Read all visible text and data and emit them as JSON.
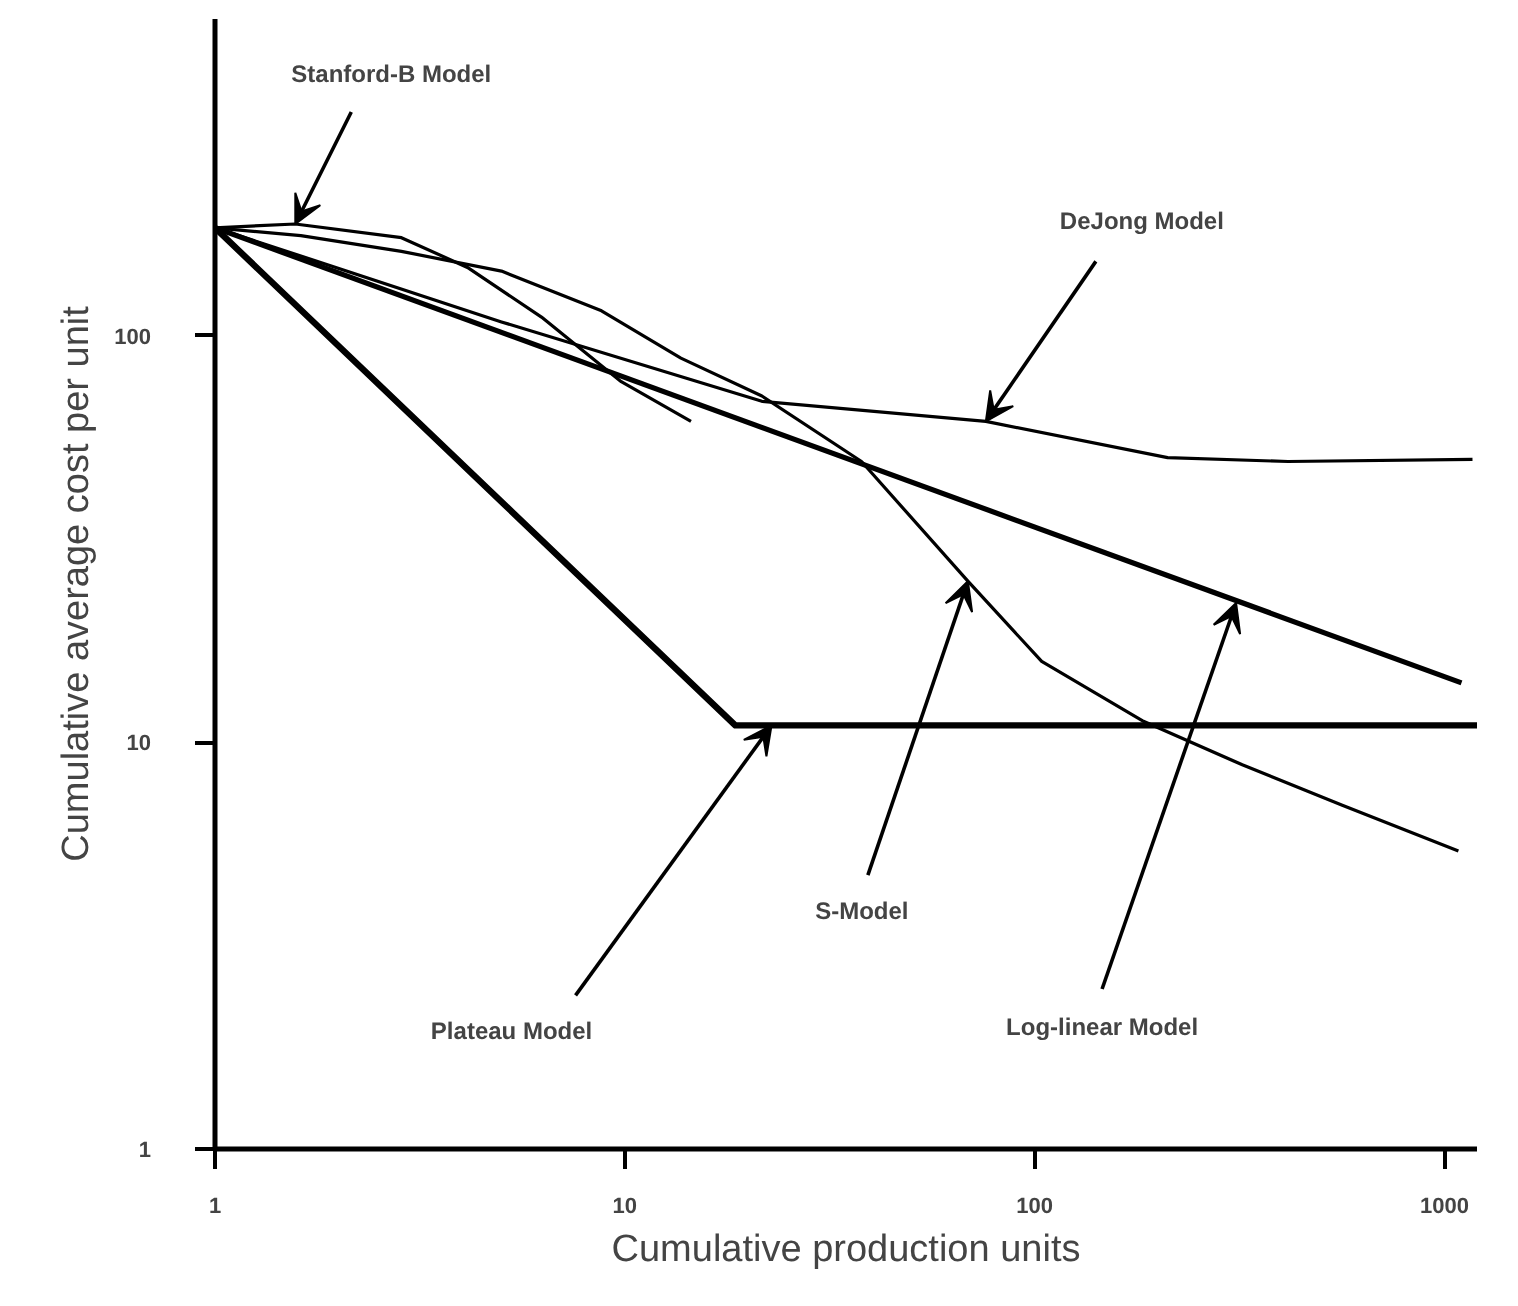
{
  "chart_data": {
    "type": "line",
    "xlabel": "Cumulative production units",
    "ylabel": "Cumulative average cost per unit",
    "log": "xy",
    "xlim": [
      1,
      1200
    ],
    "ylim": [
      1,
      600
    ],
    "xticks": [
      1,
      10,
      100,
      1000
    ],
    "yticks": [
      1,
      10,
      100
    ],
    "grid": false,
    "marker": "none",
    "line_style": "solid",
    "series": [
      {
        "color": "#000000",
        "x": [
          1,
          1.57,
          2.85,
          4.13,
          6.26,
          9.8,
          14.5
        ],
        "values": [
          184,
          188,
          174,
          147,
          111,
          77,
          61.5
        ]
      },
      {
        "color": "#000000",
        "x": [
          1,
          5.0,
          21.6,
          76,
          211,
          415,
          1170
        ],
        "values": [
          184,
          108,
          68.9,
          61.5,
          50.1,
          49,
          49.6
        ]
      },
      {
        "color": "#000000",
        "x": [
          1,
          1.62,
          2.85,
          5.0,
          8.77,
          13.7,
          21.6,
          37.8,
          68.7,
          104,
          183,
          321,
          563,
          1081
        ],
        "values": [
          184,
          176,
          161,
          144,
          115,
          88,
          71,
          49,
          24.9,
          15.8,
          11.3,
          8.8,
          7.0,
          5.4
        ]
      },
      {
        "color": "#000000",
        "x": [
          1,
          1100
        ],
        "values": [
          184,
          14
        ]
      },
      {
        "color": "#000000",
        "x": [
          1,
          18.6,
          1200
        ],
        "values": [
          184,
          11,
          11
        ]
      }
    ],
    "annotations": [
      {
        "text": "Stanford-B Model",
        "x": 1.57,
        "y": 188
      },
      {
        "text": "DeJong Model",
        "x": 76,
        "y": 61.5
      },
      {
        "text": "S-Model",
        "x": 68.7,
        "y": 24.9
      },
      {
        "text": "Log-linear Model",
        "x": 310,
        "y": 22
      },
      {
        "text": "Plateau Model",
        "x": 22.8,
        "y": 11
      }
    ]
  }
}
